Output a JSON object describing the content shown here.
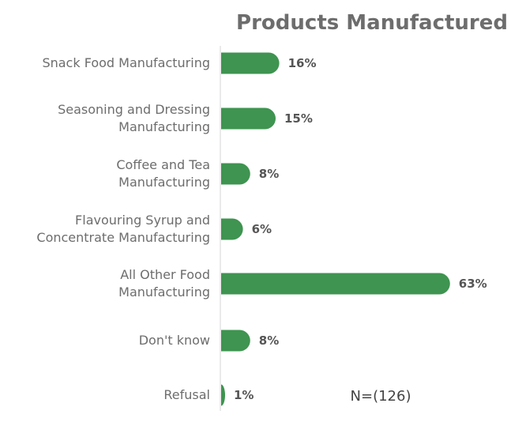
{
  "chart_data": {
    "type": "bar",
    "orientation": "horizontal",
    "title": "Products Manufactured",
    "categories": [
      [
        "Snack Food Manufacturing"
      ],
      [
        "Seasoning and Dressing",
        "Manufacturing"
      ],
      [
        "Coffee and Tea",
        "Manufacturing"
      ],
      [
        "Flavouring Syrup and",
        "Concentrate Manufacturing"
      ],
      [
        "All Other Food",
        "Manufacturing"
      ],
      [
        "Don't know"
      ],
      [
        "Refusal"
      ]
    ],
    "values": [
      16,
      15,
      8,
      6,
      63,
      8,
      1
    ],
    "value_labels": [
      "16%",
      "15%",
      "8%",
      "6%",
      "63%",
      "8%",
      "1%"
    ],
    "xlim": [
      0,
      63
    ],
    "grid": false,
    "bar_color": "#3e9450",
    "note": "N=(126)"
  }
}
